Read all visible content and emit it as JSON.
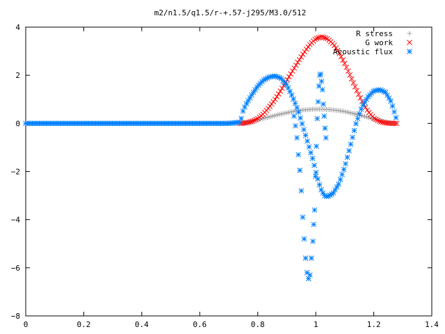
{
  "chart_data": {
    "type": "scatter",
    "title": "m2/n1.5/q1.5/r-+.57-j295/M3.0/512",
    "xlabel": "",
    "ylabel": "",
    "xlim": [
      0,
      1.4
    ],
    "ylim": [
      -8,
      4
    ],
    "xticks": [
      "0",
      "0.2",
      "0.4",
      "0.6",
      "0.8",
      "1",
      "1.2",
      "1.4"
    ],
    "yticks": [
      "4",
      "2",
      "0",
      "−2",
      "−4",
      "−6",
      "−8"
    ],
    "grid": false,
    "legend_position": "top-right",
    "series": [
      {
        "name": "R stress",
        "marker": "plus",
        "color": "#a0a0a0",
        "x": [
          0.0,
          0.05,
          0.1,
          0.15,
          0.2,
          0.25,
          0.3,
          0.35,
          0.4,
          0.45,
          0.5,
          0.55,
          0.6,
          0.65,
          0.7,
          0.74,
          0.76,
          0.78,
          0.8,
          0.82,
          0.84,
          0.86,
          0.88,
          0.9,
          0.92,
          0.94,
          0.96,
          0.98,
          1.0,
          1.02,
          1.04,
          1.06,
          1.08,
          1.1,
          1.12,
          1.14,
          1.16,
          1.18,
          1.2,
          1.22,
          1.24,
          1.26,
          1.28
        ],
        "y": [
          0,
          0,
          0,
          0,
          0,
          0,
          0,
          0,
          0,
          0,
          0,
          0,
          0,
          0,
          0,
          0.0,
          0.04,
          0.09,
          0.15,
          0.21,
          0.27,
          0.33,
          0.39,
          0.44,
          0.49,
          0.53,
          0.56,
          0.58,
          0.59,
          0.59,
          0.58,
          0.56,
          0.53,
          0.49,
          0.44,
          0.38,
          0.32,
          0.25,
          0.18,
          0.12,
          0.06,
          0.02,
          0.0
        ]
      },
      {
        "name": "G work",
        "marker": "cross",
        "color": "#ff0000",
        "x": [
          0.74,
          0.76,
          0.78,
          0.8,
          0.82,
          0.84,
          0.86,
          0.88,
          0.9,
          0.92,
          0.94,
          0.96,
          0.98,
          1.0,
          1.02,
          1.04,
          1.06,
          1.08,
          1.1,
          1.12,
          1.14,
          1.16,
          1.18,
          1.2,
          1.22,
          1.24,
          1.26,
          1.28
        ],
        "y": [
          0.0,
          0.02,
          0.08,
          0.2,
          0.4,
          0.68,
          1.0,
          1.38,
          1.78,
          2.18,
          2.58,
          2.95,
          3.28,
          3.52,
          3.6,
          3.52,
          3.3,
          2.95,
          2.48,
          1.95,
          1.4,
          0.9,
          0.5,
          0.22,
          0.08,
          0.02,
          0.0,
          0.0
        ]
      },
      {
        "name": "Acoustic flux",
        "marker": "star",
        "color": "#0080ff",
        "x": [
          0.0,
          0.05,
          0.1,
          0.15,
          0.2,
          0.25,
          0.3,
          0.35,
          0.4,
          0.45,
          0.5,
          0.55,
          0.6,
          0.65,
          0.7,
          0.74,
          0.75,
          0.76,
          0.78,
          0.8,
          0.82,
          0.84,
          0.86,
          0.88,
          0.9,
          0.92,
          0.94,
          0.96,
          0.97,
          0.98,
          0.99,
          1.0,
          1.01,
          1.02,
          1.03,
          1.04,
          1.06,
          1.08,
          1.1,
          1.12,
          1.14,
          1.16,
          1.18,
          1.2,
          1.22,
          1.24,
          1.26,
          1.28
        ],
        "y": [
          0,
          0,
          0,
          0,
          0,
          0,
          0,
          0,
          0,
          0,
          0,
          0,
          0,
          0,
          0,
          0.05,
          0.55,
          0.8,
          1.2,
          1.55,
          1.8,
          1.93,
          1.97,
          1.88,
          1.6,
          1.1,
          0.5,
          -0.3,
          -0.7,
          -1.1,
          -1.5,
          -2.0,
          -2.45,
          -2.8,
          -3.0,
          -3.05,
          -2.9,
          -2.5,
          -1.8,
          -0.9,
          0.05,
          0.7,
          1.1,
          1.35,
          1.4,
          1.3,
          0.9,
          0.1
        ]
      },
      {
        "name": "",
        "marker": "star",
        "color": "#0080ff",
        "x": [
          0.925,
          0.93,
          0.935,
          0.94,
          0.945,
          0.95,
          0.955,
          0.96,
          0.965,
          0.97,
          0.975,
          0.98,
          0.985,
          0.99,
          0.993,
          0.996,
          0.999,
          1.002,
          1.005,
          1.008,
          1.011,
          1.014,
          1.017,
          1.02,
          1.023,
          1.026,
          1.029,
          1.032,
          1.035
        ],
        "y": [
          0.3,
          -0.1,
          -0.6,
          -1.3,
          -1.95,
          -2.8,
          -3.9,
          -4.8,
          -5.6,
          -6.2,
          -6.45,
          -6.3,
          -5.6,
          -4.9,
          -4.2,
          -3.6,
          -2.2,
          -0.95,
          0.2,
          0.9,
          1.55,
          2.0,
          2.05,
          1.75,
          1.4,
          0.8,
          0.3,
          -0.2,
          -0.6
        ]
      }
    ]
  }
}
